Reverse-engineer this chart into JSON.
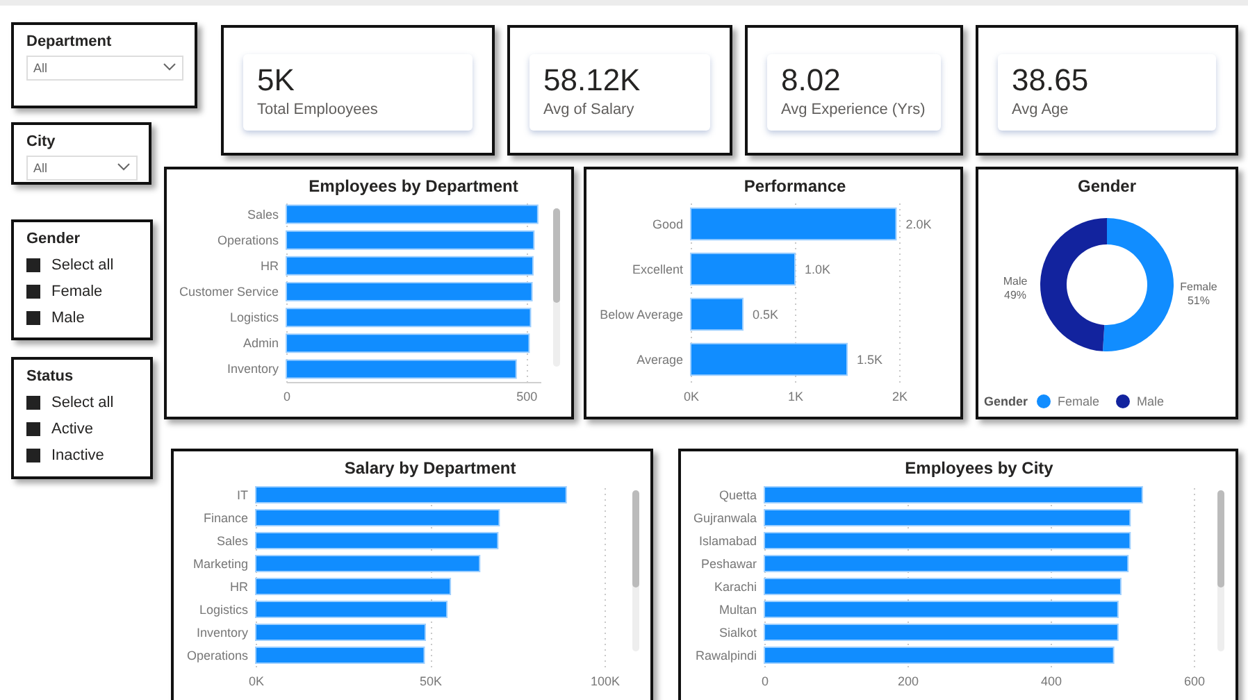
{
  "chart_data": [
    {
      "type": "other",
      "title": "Department",
      "annotations": [
        "All"
      ]
    },
    {
      "type": "other",
      "title": "City",
      "annotations": [
        "All"
      ]
    },
    {
      "type": "other",
      "title": "Gender",
      "annotations": [
        "Select all",
        "Female",
        "Male"
      ]
    },
    {
      "type": "other",
      "title": "Status",
      "annotations": [
        "Select all",
        "Active",
        "Inactive"
      ]
    },
    {
      "type": "other",
      "title": "Total Emplooyees",
      "annotations": [
        "5K"
      ]
    },
    {
      "type": "other",
      "title": "Avg of Salary",
      "annotations": [
        "58.12K"
      ]
    },
    {
      "type": "other",
      "title": "Avg Experience (Yrs)",
      "annotations": [
        "8.02"
      ]
    },
    {
      "type": "other",
      "title": "Avg Age",
      "annotations": [
        "38.65"
      ]
    },
    {
      "type": "bar",
      "title": "Employees by Department",
      "orientation": "horizontal",
      "categories": [
        "Sales",
        "Operations",
        "HR",
        "Customer Service",
        "Logistics",
        "Admin",
        "Inventory"
      ],
      "values": [
        524,
        516,
        514,
        512,
        509,
        506,
        479
      ],
      "color": "#118dff",
      "xlim": [
        0,
        530
      ],
      "xticks": [
        0,
        500
      ],
      "grid": "x"
    },
    {
      "type": "bar",
      "title": "Performance",
      "orientation": "horizontal",
      "categories": [
        "Good",
        "Excellent",
        "Below Average",
        "Average"
      ],
      "values": [
        1970,
        1000,
        500,
        1500
      ],
      "value_labels": [
        "2.0K",
        "1.0K",
        "0.5K",
        "1.5K"
      ],
      "color": "#118dff",
      "xlim": [
        0,
        2000
      ],
      "xticks": [
        {
          "value": 0,
          "label": "0K"
        },
        {
          "value": 1000,
          "label": "1K"
        },
        {
          "value": 2000,
          "label": "2K"
        }
      ],
      "grid": "x"
    },
    {
      "type": "donut",
      "title": "Gender",
      "categories": [
        "Female",
        "Male"
      ],
      "values": [
        51,
        49
      ],
      "colors": [
        "#118dff",
        "#12239e"
      ],
      "value_labels": [
        "Female 51%",
        "Male 49%"
      ],
      "legend": "bottom",
      "legend_title": "Gender"
    },
    {
      "type": "bar",
      "title": "Salary by Department",
      "orientation": "horizontal",
      "categories": [
        "IT",
        "Finance",
        "Sales",
        "Marketing",
        "HR",
        "Logistics",
        "Inventory",
        "Operations"
      ],
      "values": [
        89000,
        69800,
        69400,
        64200,
        55800,
        54800,
        48600,
        48300
      ],
      "color": "#118dff",
      "xlim": [
        0,
        100000
      ],
      "xticks": [
        {
          "value": 0,
          "label": "0K"
        },
        {
          "value": 50000,
          "label": "50K"
        },
        {
          "value": 100000,
          "label": "100K"
        }
      ],
      "grid": "x"
    },
    {
      "type": "bar",
      "title": "Employees by City",
      "orientation": "horizontal",
      "categories": [
        "Quetta",
        "Gujranwala",
        "Islamabad",
        "Peshawar",
        "Karachi",
        "Multan",
        "Sialkot",
        "Rawalpindi"
      ],
      "values": [
        528,
        511,
        511,
        508,
        498,
        494,
        494,
        488
      ],
      "color": "#118dff",
      "xlim": [
        0,
        600
      ],
      "xticks": [
        0,
        200,
        400,
        600
      ],
      "grid": "x"
    }
  ]
}
